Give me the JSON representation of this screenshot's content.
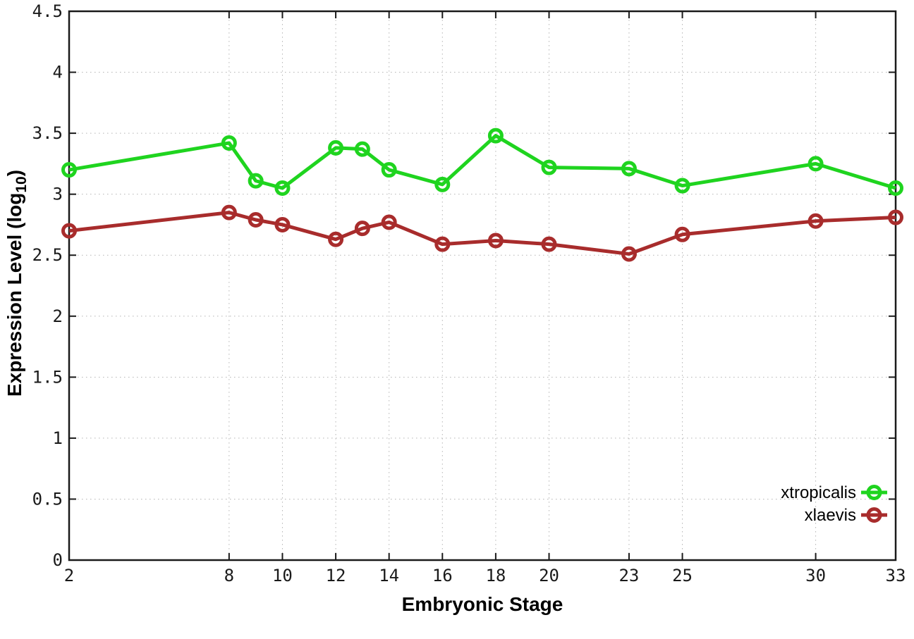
{
  "chart_data": {
    "type": "line",
    "title": "",
    "xlabel": "Embryonic Stage",
    "ylabel": "Expression Level (log10)",
    "ylabel_parts": {
      "prefix": "Expression Level (log",
      "subscript": "10",
      "suffix": ")"
    },
    "x": [
      2,
      8,
      9,
      10,
      12,
      13,
      14,
      16,
      18,
      20,
      23,
      25,
      30,
      33
    ],
    "xticks": [
      "2",
      "8",
      "10",
      "12",
      "14",
      "16",
      "18",
      "20",
      "23",
      "25",
      "30",
      "33"
    ],
    "xtick_values": [
      2,
      8,
      10,
      12,
      14,
      16,
      18,
      20,
      23,
      25,
      30,
      33
    ],
    "yticks": [
      "0",
      "0.5",
      "1",
      "1.5",
      "2",
      "2.5",
      "3",
      "3.5",
      "4",
      "4.5"
    ],
    "ytick_values": [
      0,
      0.5,
      1,
      1.5,
      2,
      2.5,
      3,
      3.5,
      4,
      4.5
    ],
    "xlim": [
      2,
      33
    ],
    "ylim": [
      0,
      4.5
    ],
    "grid": true,
    "legend_position": "inside-right-lower",
    "series": [
      {
        "name": "xtropicalis",
        "color": "#1fd41f",
        "marker": "open-circle",
        "values": [
          3.2,
          3.42,
          3.11,
          3.05,
          3.38,
          3.37,
          3.2,
          3.08,
          3.48,
          3.22,
          3.21,
          3.07,
          3.25,
          3.05
        ]
      },
      {
        "name": "xlaevis",
        "color": "#a82c2c",
        "marker": "open-circle",
        "values": [
          2.7,
          2.85,
          2.79,
          2.75,
          2.63,
          2.72,
          2.77,
          2.59,
          2.62,
          2.59,
          2.51,
          2.67,
          2.78,
          2.81
        ]
      }
    ],
    "colors": {
      "background": "#ffffff",
      "frame": "#1a1a1a",
      "grid": "#b4b4b4",
      "tick_label": "#1a1a1a",
      "axis_title": "#000000",
      "legend_text": "#000000"
    }
  }
}
